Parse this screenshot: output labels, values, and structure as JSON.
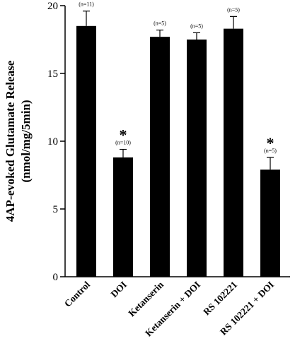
{
  "chart_data": {
    "type": "bar",
    "categories": [
      "Control",
      "DOI",
      "Ketanserin",
      "Ketanserin + DOI",
      "RS 102221",
      "RS 102221 + DOI"
    ],
    "values": [
      18.5,
      8.8,
      17.7,
      17.5,
      18.3,
      7.9
    ],
    "errors": [
      1.1,
      0.6,
      0.5,
      0.5,
      0.9,
      0.9
    ],
    "n_labels": [
      "(n=11)",
      "(n=10)",
      "(n=5)",
      "(n=5)",
      "(n=5)",
      "(n=5)"
    ],
    "significance": [
      "",
      "*",
      "",
      "",
      "",
      "*"
    ],
    "ylabel_line1": "4AP-evoked Glutamate Release",
    "ylabel_line2": "(nmol/mg/5min)",
    "yticks": [
      0,
      5,
      10,
      15,
      20
    ],
    "ylim": [
      0,
      20
    ],
    "bar_color": "#000000"
  }
}
